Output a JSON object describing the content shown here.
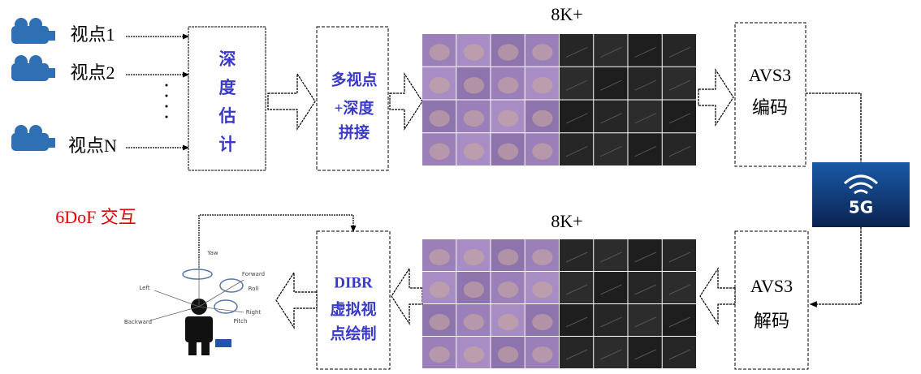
{
  "inputs": [
    {
      "label": "视点1"
    },
    {
      "label": "视点2"
    },
    {
      "label": "视点N"
    }
  ],
  "depth_box": {
    "lines": [
      "深",
      "度",
      "估",
      "计"
    ]
  },
  "stitch_box": {
    "lines": [
      "多视点",
      "+深度",
      "拼接"
    ]
  },
  "top_resolution": "8K+",
  "encode_box": {
    "lines": [
      "AVS3",
      "编码"
    ]
  },
  "network": "5G",
  "interaction": "6DoF 交互",
  "bottom_resolution": "8K+",
  "decode_box": {
    "lines": [
      "AVS3",
      "解码"
    ]
  },
  "render_box": {
    "lines": [
      "DIBR",
      "虚拟视",
      "点绘制"
    ]
  },
  "pose_labels": [
    "Yaw",
    "Forward",
    "Roll",
    "Left",
    "Right",
    "Pitch",
    "Backward"
  ]
}
